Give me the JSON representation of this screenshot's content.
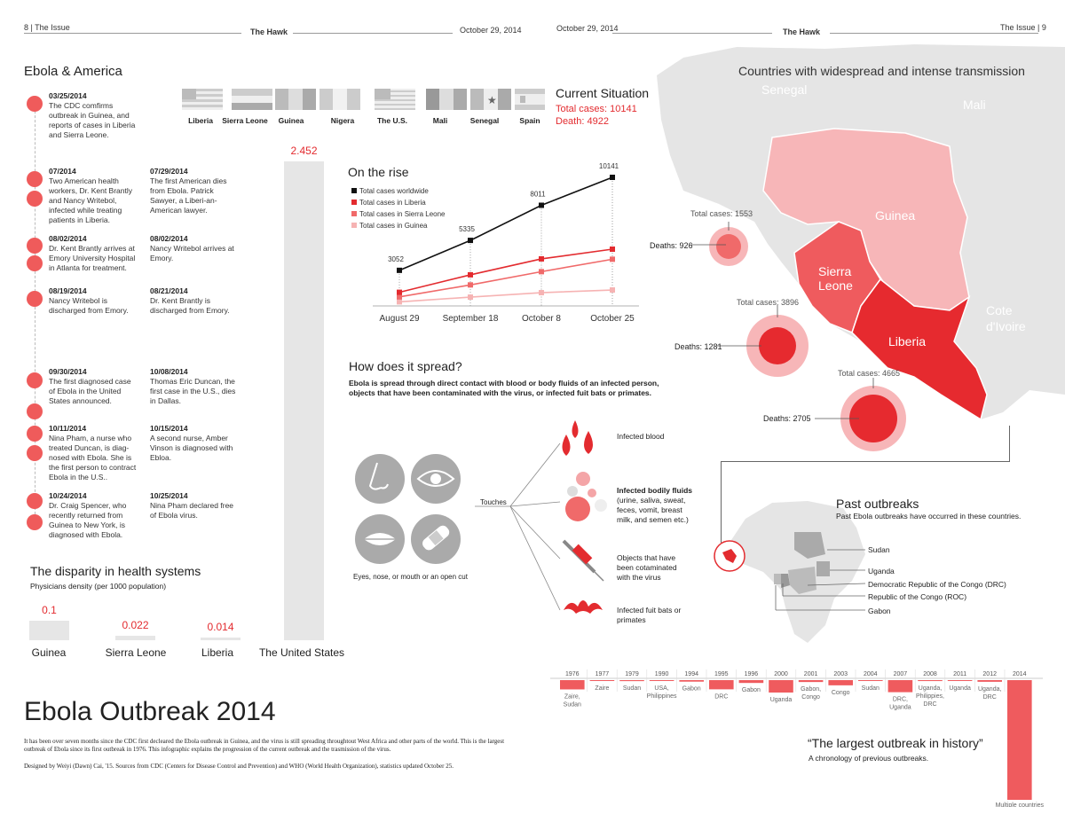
{
  "header": {
    "left_page": "8 | The Issue",
    "left_paper": "The Hawk",
    "left_date": "October 29, 2014",
    "right_date": "October 29, 2014",
    "right_paper": "The Hawk",
    "right_page": "The Issue | 9"
  },
  "timeline": {
    "title": "Ebola & America",
    "entries": [
      {
        "date": "03/25/2014",
        "text": "The CDC comfirms outbreak in Guinea, and reports of cases in Liberia and Sierra Leone."
      },
      {
        "date": "07/2014",
        "text": "Two American health workers, Dr. Kent Brantly and Nancy Writebol, infected while treating patients in Liberia."
      },
      {
        "date": "07/29/2014",
        "text": "The first American dies from Ebola. Patrick Sawyer, a Liberi-an-American lawyer."
      },
      {
        "date": "08/02/2014",
        "text": "Dr. Kent Brantly arrives at Emory University Hospital in Atlanta for treatment."
      },
      {
        "date": "08/02/2014",
        "text": "Nancy Writebol arrives at Emory."
      },
      {
        "date": "08/19/2014",
        "text": "Nancy Writebol is discharged from Emory."
      },
      {
        "date": "08/21/2014",
        "text": "Dr. Kent Brantly is discharged from Emory."
      },
      {
        "date": "09/30/2014",
        "text": "The first diagnosed case of Ebola in the United States announced."
      },
      {
        "date": "10/08/2014",
        "text": "Thomas Eric Duncan, the first case in the U.S., dies in Dallas."
      },
      {
        "date": "10/11/2014",
        "text": "Nina Pham, a nurse who treated Duncan, is diag-nosed with Ebola. She is the first person to contract Ebola in the U.S.."
      },
      {
        "date": "10/15/2014",
        "text": "A second nurse, Amber Vinson is diagnosed with Ebloa."
      },
      {
        "date": "10/24/2014",
        "text": "Dr. Craig Spencer, who recently returned from Guinea to New York, is diagnosed with Ebola."
      },
      {
        "date": "10/25/2014",
        "text": "Nina Pham declared free of Ebola virus."
      }
    ]
  },
  "flags": [
    "Liberia",
    "Sierra Leone",
    "Guinea",
    "Nigera",
    "The U.S.",
    "Mali",
    "Senegal",
    "Spain"
  ],
  "current": {
    "title": "Current Situation",
    "total": "Total cases: 10141",
    "death": "Death: 4922"
  },
  "disparity": {
    "title": "The disparity in health systems",
    "subtitle": "Physicians density (per 1000 population)"
  },
  "chart_data": [
    {
      "type": "bar",
      "title": "The disparity in health systems",
      "categories": [
        "Guinea",
        "Sierra Leone",
        "Liberia",
        "The United States"
      ],
      "values": [
        0.1,
        0.022,
        0.014,
        2.452
      ],
      "value_labels": [
        "0.1",
        "0.022",
        "0.014",
        "2.452"
      ]
    },
    {
      "type": "line",
      "title": "On the rise",
      "categories": [
        "August 29",
        "September 18",
        "October 8",
        "October 25"
      ],
      "series": [
        {
          "name": "Total cases worldwide",
          "values": [
            3052,
            5335,
            8011,
            10141
          ],
          "color": "#111111"
        },
        {
          "name": "Total cases in Liberia",
          "values": [
            1378,
            2710,
            3924,
            4665
          ],
          "color": "#e32b2f"
        },
        {
          "name": "Total cases in Sierra Leone",
          "values": [
            1026,
            1940,
            2950,
            3896
          ],
          "color": "#f06a6a"
        },
        {
          "name": "Total cases in Guinea",
          "values": [
            648,
            1008,
            1350,
            1553
          ],
          "color": "#f6b3b3"
        }
      ],
      "point_labels": [
        "3052",
        "5335",
        "8011",
        "10141"
      ]
    },
    {
      "type": "bar",
      "title": "“The largest outbreak in history”",
      "categories": [
        "1976",
        "1977",
        "1979",
        "1990",
        "1994",
        "1995",
        "1996",
        "2000",
        "2001",
        "2003",
        "2004",
        "2007",
        "2008",
        "2011",
        "2012",
        "2014"
      ],
      "values": [
        318,
        1,
        34,
        0,
        52,
        315,
        97,
        425,
        65,
        178,
        17,
        413,
        32,
        1,
        57,
        10141
      ],
      "country_labels": [
        "Zaire, Sudan",
        "Zaire",
        "Sudan",
        "USA, Philippines",
        "Gabon",
        "DRC",
        "Gabon",
        "Uganda",
        "Gabon, Congo",
        "Congo",
        "Sudan",
        "DRC, Uganda",
        "Uganda, Philippies, DRC",
        "Uganda",
        "Uganda, DRC",
        "Multiple countries"
      ]
    }
  ],
  "rise": {
    "title": "On the rise"
  },
  "spread": {
    "title": "How does it spread?",
    "desc": "Ebola is spread through direct contact with blood or body fluids of an infected person, objects that have been contaminated with the virus, or infected fuit bats or primates.",
    "touches": "Touches",
    "entry": "Eyes, nose, or mouth or an open cut",
    "items": [
      {
        "title": "Infected blood",
        "text": ""
      },
      {
        "title": "Infected bodily fluids",
        "text": "(urine, saliva, sweat, feces, vomit, breast milk, and semen etc.)"
      },
      {
        "title": "",
        "text": "Objects that have been cotaminated with the virus"
      },
      {
        "title": "",
        "text": "Infected fuit bats or primates"
      }
    ]
  },
  "map": {
    "title": "Countries with widespread and intense transmission",
    "countries": {
      "senegal": "Senegal",
      "mali": "Mali",
      "guinea": "Guinea",
      "sierra1": "Sierra",
      "sierra2": "Leone",
      "liberia": "Liberia",
      "cote1": "Cote",
      "cote2": "d'Ivoire"
    },
    "guinea_total": "Total cases: 1553",
    "guinea_deaths": "Deaths: 926",
    "sl_total": "Total cases: 3896",
    "sl_deaths": "Deaths: 1281",
    "lib_total": "Total cases: 4665",
    "lib_deaths": "Deaths: 2705",
    "colors": {
      "guinea": "#f7b6b8",
      "sierra": "#ef5b5e",
      "liberia": "#e62a2f",
      "land": "#e6e6e6"
    }
  },
  "past": {
    "title": "Past outbreaks",
    "subtitle": "Past Ebola outbreaks have occurred in these countries.",
    "countries": [
      "Sudan",
      "Uganda",
      "Democratic Republic of the Congo (DRC)",
      "Republic of the Congo (ROC)",
      "Gabon"
    ]
  },
  "chronology": {
    "quote": "“The largest outbreak in history”",
    "sub": "A chronology of previous outbreaks."
  },
  "footer": {
    "title": "Ebola Outbreak 2014",
    "body": "It has been over seven months since the CDC first decleared the Ebola outbreak in Guinea, and the virus is still spreading throughtout West Africa and other parts of the world. This is the largest outbreak of Ebola since its first outbreak in 1976. This infographic explains the progression of the current outbreak and the trasmission of the virus.",
    "credit": "Designed by Weiyi (Dawn) Cai, '15. Sources from CDC (Centers for Disease Control and Prevention) and WHO (World Health Organization), statistics updated October 25."
  }
}
